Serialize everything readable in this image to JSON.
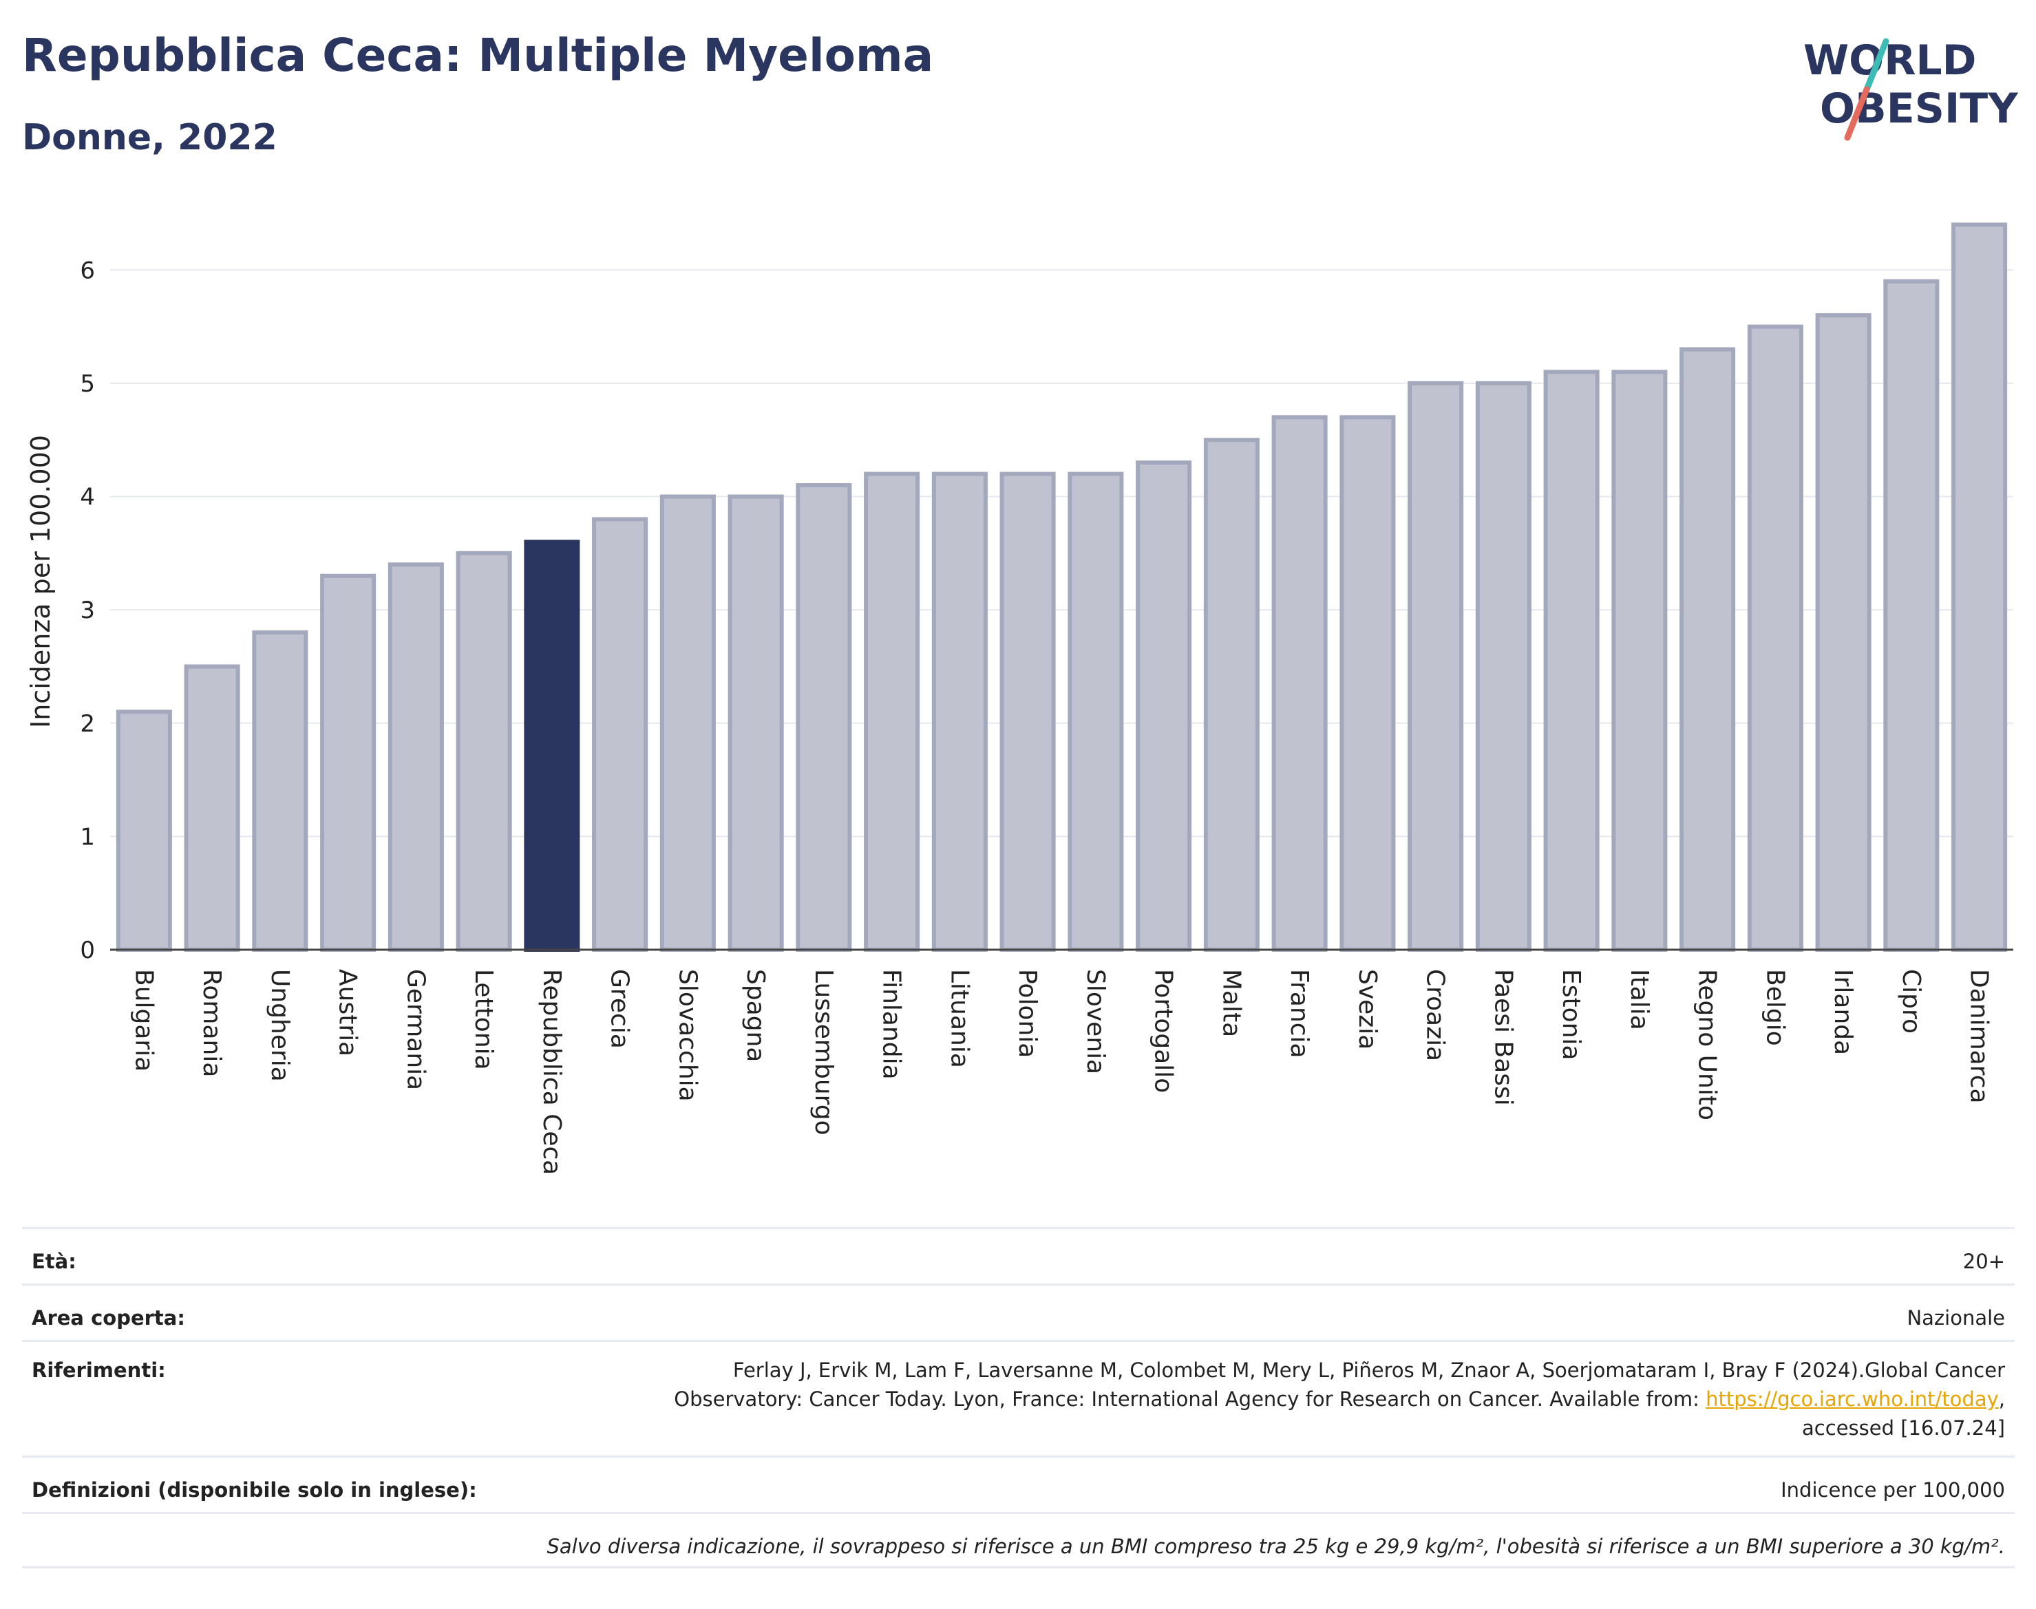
{
  "header": {
    "title": "Repubblica Ceca: Multiple Myeloma",
    "subtitle": "Donne, 2022"
  },
  "logo": {
    "line1": "WORLD",
    "line2": "OBESITY"
  },
  "colors": {
    "bar": "#c0c3cf",
    "bar_border": "#a3a8bd",
    "highlight": "#2b3660",
    "text": "#2b3660"
  },
  "chart_data": {
    "type": "bar",
    "ylabel": "Incidenza per 100.000",
    "ylim": [
      0,
      6.5
    ],
    "yticks": [
      0,
      1,
      2,
      3,
      4,
      5,
      6
    ],
    "grid": true,
    "highlight": "Repubblica Ceca",
    "categories": [
      "Bulgaria",
      "Romania",
      "Ungheria",
      "Austria",
      "Germania",
      "Lettonia",
      "Repubblica Ceca",
      "Grecia",
      "Slovacchia",
      "Spagna",
      "Lussemburgo",
      "Finlandia",
      "Lituania",
      "Polonia",
      "Slovenia",
      "Portogallo",
      "Malta",
      "Francia",
      "Svezia",
      "Croazia",
      "Paesi Bassi",
      "Estonia",
      "Italia",
      "Regno Unito",
      "Belgio",
      "Irlanda",
      "Cipro",
      "Danimarca"
    ],
    "values": [
      2.1,
      2.5,
      2.8,
      3.3,
      3.4,
      3.5,
      3.6,
      3.8,
      4.0,
      4.0,
      4.1,
      4.2,
      4.2,
      4.2,
      4.2,
      4.3,
      4.5,
      4.7,
      4.7,
      5.0,
      5.0,
      5.1,
      5.1,
      5.3,
      5.5,
      5.6,
      5.9,
      6.4
    ]
  },
  "info": {
    "age_label": "Età:",
    "age_value": "20+",
    "area_label": "Area coperta:",
    "area_value": "Nazionale",
    "ref_label": "Riferimenti:",
    "ref_line1": "Ferlay J, Ervik M, Lam F, Laversanne M, Colombet M, Mery L, Piñeros M, Znaor A, Soerjomataram I, Bray F (2024).Global Cancer",
    "ref_line2": "Observatory: Cancer Today. Lyon, France: International Agency for Research on Cancer. Available from: ",
    "ref_link": "https://gco.iarc.who.int/today",
    "ref_line2_end": ",",
    "ref_line3": "accessed [16.07.24]",
    "def_label": "Definizioni (disponibile solo in inglese):",
    "def_value": "Indicence per 100,000",
    "footnote": "Salvo diversa indicazione, il sovrappeso si riferisce a un BMI compreso tra 25 kg e 29,9 kg/m², l'obesità si riferisce a un BMI superiore a 30 kg/m²."
  }
}
